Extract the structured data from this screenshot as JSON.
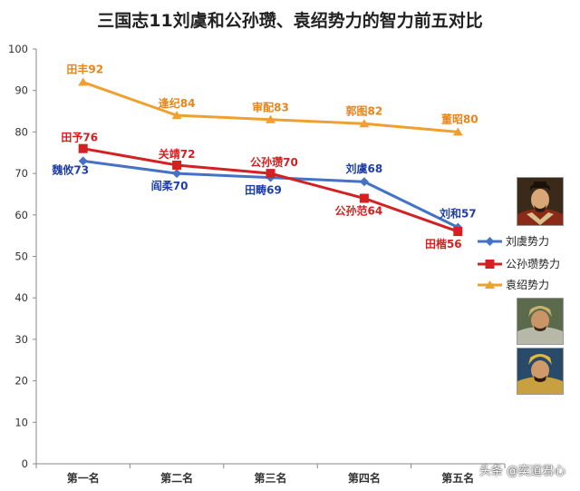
{
  "chart_data": {
    "type": "line",
    "title": "三国志11刘虞和公孙瓒、袁绍势力的智力前五对比",
    "categories": [
      "第一名",
      "第二名",
      "第三名",
      "第四名",
      "第五名"
    ],
    "ylim": [
      0,
      100
    ],
    "yticks": [
      0,
      10,
      20,
      30,
      40,
      50,
      60,
      70,
      80,
      90,
      100
    ],
    "grid": false,
    "legend_position": "right",
    "series": [
      {
        "name": "刘虞势力",
        "color": "#4472c4",
        "label_color": "#1f3fa8",
        "marker": "diamond",
        "values": [
          73,
          70,
          69,
          68,
          57
        ],
        "labels": [
          "魏攸73",
          "阎柔70",
          "田畴69",
          "刘虞68",
          "刘和57"
        ]
      },
      {
        "name": "公孙瓒势力",
        "color": "#d42020",
        "label_color": "#d42020",
        "marker": "square",
        "values": [
          76,
          72,
          70,
          64,
          56
        ],
        "labels": [
          "田予76",
          "关靖72",
          "公孙瓒70",
          "公孙范64",
          "田楷56"
        ]
      },
      {
        "name": "袁绍势力",
        "color": "#f0a030",
        "label_color": "#e8851a",
        "marker": "triangle",
        "values": [
          92,
          84,
          83,
          82,
          80
        ],
        "labels": [
          "田丰92",
          "逢纪84",
          "审配83",
          "郭图82",
          "董昭80"
        ]
      }
    ]
  },
  "watermark": "头条 @奕道君心"
}
